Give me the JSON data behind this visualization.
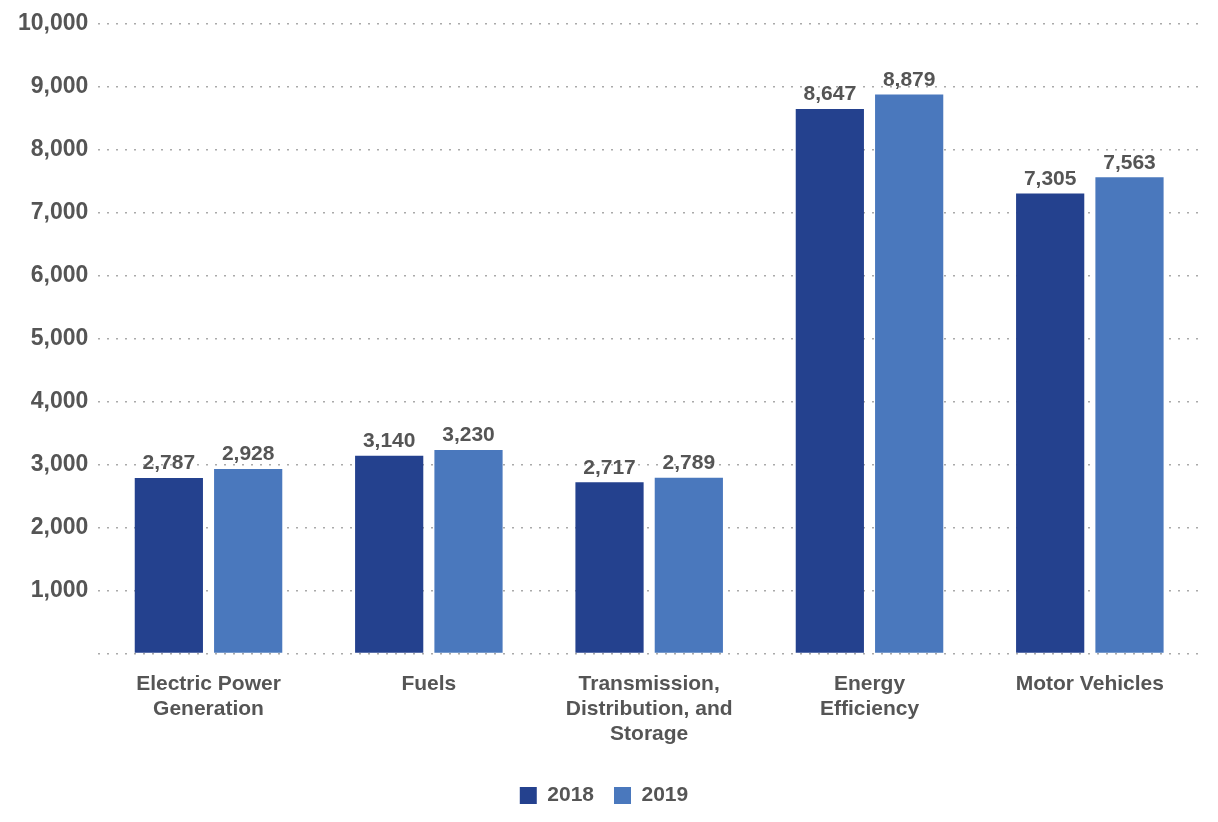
{
  "chart_data": {
    "type": "bar",
    "categories": [
      "Electric Power Generation",
      "Fuels",
      "Transmission, Distribution, and Storage",
      "Energy Efficiency",
      "Motor Vehicles"
    ],
    "series": [
      {
        "name": "2018",
        "color": "#24418e",
        "values": [
          2787,
          3140,
          2717,
          8647,
          7305
        ],
        "value_labels": [
          "2,787",
          "3,140",
          "2,717",
          "8,647",
          "7,305"
        ]
      },
      {
        "name": "2019",
        "color": "#4a78bd",
        "values": [
          2928,
          3230,
          2789,
          8879,
          7563
        ],
        "value_labels": [
          "2,928",
          "3,230",
          "2,789",
          "8,879",
          "7,563"
        ]
      }
    ],
    "ylim": [
      0,
      10000
    ],
    "yticks": [
      {
        "value": 0,
        "label": null
      },
      {
        "value": 1000,
        "label": "1,000"
      },
      {
        "value": 2000,
        "label": "2,000"
      },
      {
        "value": 3000,
        "label": "3,000"
      },
      {
        "value": 4000,
        "label": "4,000"
      },
      {
        "value": 5000,
        "label": "5,000"
      },
      {
        "value": 6000,
        "label": "6,000"
      },
      {
        "value": 7000,
        "label": "7,000"
      },
      {
        "value": 8000,
        "label": "8,000"
      },
      {
        "value": 9000,
        "label": "9,000"
      },
      {
        "value": 10000,
        "label": "10,000"
      }
    ],
    "grid": "y",
    "legend": "bottom"
  }
}
